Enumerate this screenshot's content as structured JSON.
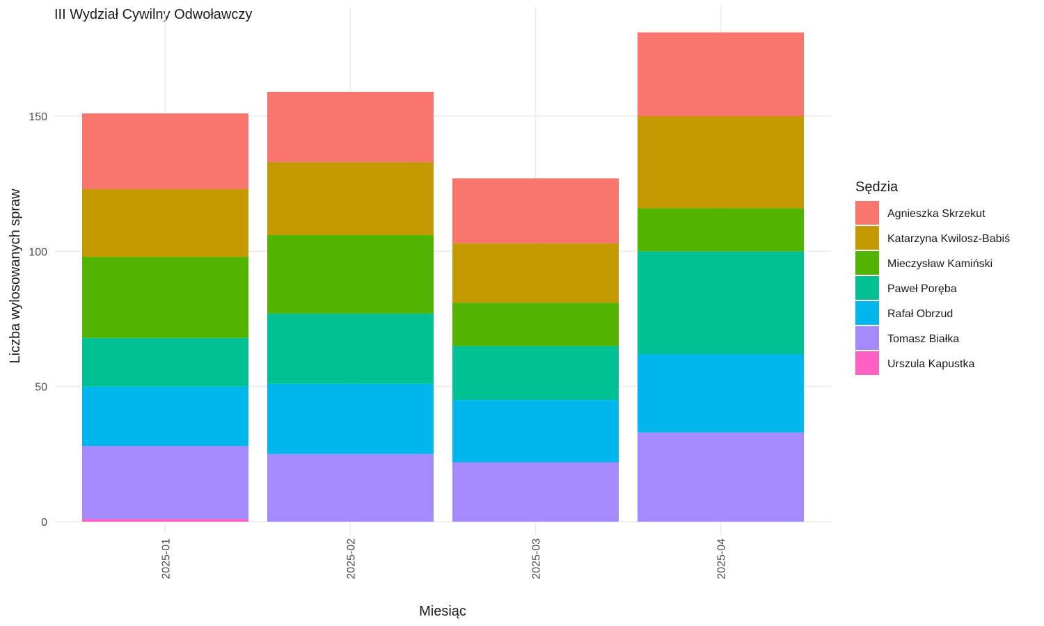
{
  "chart_data": {
    "type": "bar",
    "stacked": true,
    "title": "III Wydział Cywilny Odwoławczy",
    "xlabel": "Miesiąc",
    "ylabel": "Liczba wylosowanych spraw",
    "categories": [
      "2025-01",
      "2025-02",
      "2025-03",
      "2025-04"
    ],
    "ylim": [
      0,
      190
    ],
    "yticks": [
      0,
      50,
      100,
      150
    ],
    "grid": true,
    "legend": {
      "title": "Sędzia",
      "position": "right"
    },
    "series": [
      {
        "name": "Urszula Kapustka",
        "color": "#FF61C3",
        "values": [
          1,
          0,
          0,
          0
        ]
      },
      {
        "name": "Tomasz Białka",
        "color": "#A58AFF",
        "values": [
          27,
          25,
          22,
          33
        ]
      },
      {
        "name": "Rafał Obrzud",
        "color": "#00B6EB",
        "values": [
          22,
          26,
          23,
          29
        ]
      },
      {
        "name": "Paweł Poręba",
        "color": "#00C094",
        "values": [
          18,
          26,
          20,
          38
        ]
      },
      {
        "name": "Mieczysław Kamiński",
        "color": "#53B400",
        "values": [
          30,
          29,
          16,
          16
        ]
      },
      {
        "name": "Katarzyna Kwilosz-Babiś",
        "color": "#C49A00",
        "values": [
          25,
          27,
          22,
          34
        ]
      },
      {
        "name": "Agnieszka Skrzekut",
        "color": "#F8766D",
        "values": [
          28,
          26,
          24,
          31
        ]
      }
    ],
    "legend_order": [
      "Agnieszka Skrzekut",
      "Katarzyna Kwilosz-Babiś",
      "Mieczysław Kamiński",
      "Paweł Poręba",
      "Rafał Obrzud",
      "Tomasz Białka",
      "Urszula Kapustka"
    ]
  }
}
